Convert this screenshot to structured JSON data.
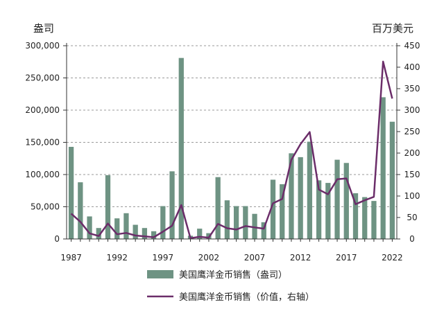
{
  "chart_data": {
    "type": "bar",
    "y_left_label": "盎司",
    "y_right_label": "百万美元",
    "ylim_left": [
      0,
      300000
    ],
    "ylim_right": [
      0,
      450
    ],
    "yticks_left": [
      "0",
      "50,000",
      "100,000",
      "150,000",
      "200,000",
      "250,000",
      "300,000"
    ],
    "yticks_right": [
      "0",
      "50",
      "100",
      "150",
      "200",
      "250",
      "300",
      "350",
      "400",
      "450"
    ],
    "xticks": [
      "1987",
      "1992",
      "1997",
      "2002",
      "2007",
      "2012",
      "2017",
      "2022"
    ],
    "grid": "horizontal dashed",
    "legend_position": "bottom",
    "x": [
      1987,
      1988,
      1989,
      1990,
      1991,
      1992,
      1993,
      1994,
      1995,
      1996,
      1997,
      1998,
      1999,
      2000,
      2001,
      2002,
      2003,
      2004,
      2005,
      2006,
      2007,
      2008,
      2009,
      2010,
      2011,
      2012,
      2013,
      2014,
      2015,
      2016,
      2017,
      2018,
      2019,
      2020,
      2021,
      2022
    ],
    "series": [
      {
        "name": "美国鹰洋金币销售（盎司）",
        "type": "bar",
        "axis": "left",
        "color": "#6e9383",
        "values": [
          143000,
          88000,
          35000,
          17000,
          99000,
          32000,
          40000,
          22000,
          17000,
          12000,
          51000,
          105000,
          281000,
          5000,
          16000,
          9000,
          96000,
          60000,
          51000,
          51000,
          39000,
          26000,
          92000,
          85000,
          133000,
          127000,
          151000,
          91000,
          87000,
          123000,
          118000,
          71000,
          65000,
          59000,
          220000,
          182000
        ]
      },
      {
        "name": "美国鹰洋金币销售（价值，右轴）",
        "type": "line",
        "axis": "right",
        "color": "#6b2d69",
        "values": [
          59,
          40,
          13,
          7,
          36,
          11,
          14,
          8,
          6,
          4,
          17,
          31,
          79,
          2,
          5,
          3,
          35,
          25,
          22,
          30,
          27,
          24,
          83,
          93,
          184,
          221,
          249,
          115,
          104,
          139,
          141,
          81,
          90,
          98,
          413,
          327
        ]
      }
    ]
  }
}
